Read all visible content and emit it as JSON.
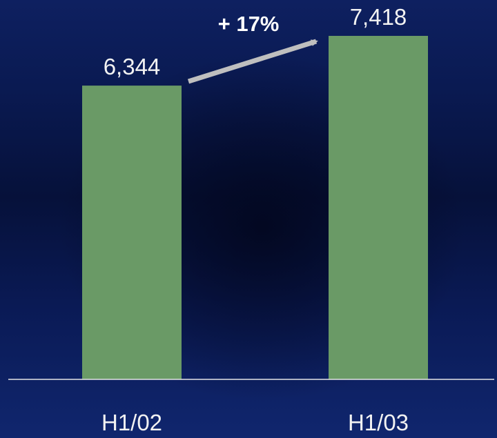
{
  "chart_data": {
    "type": "bar",
    "categories": [
      "H1/02",
      "H1/03"
    ],
    "values": [
      6344,
      7418
    ],
    "value_labels": [
      "6,344",
      "7,418"
    ],
    "annotation": "+ 17%",
    "ylim": [
      0,
      7418
    ],
    "grid": false,
    "legend": "none",
    "colors": {
      "bar": "#6a9a66",
      "axis": "#e6e6e6",
      "arrow": "#bfbfbf",
      "text": "#f2f2f2"
    }
  }
}
